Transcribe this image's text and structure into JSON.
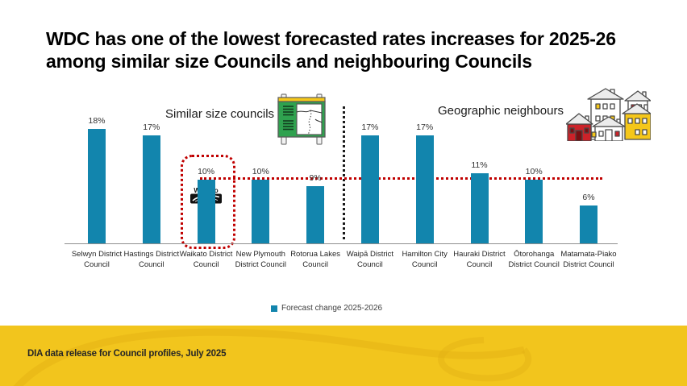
{
  "title": {
    "line1": "WDC has one of the lowest forecasted rates increases for 2025-26",
    "line2": "among similar size Councils and neighbouring Councils",
    "full": "WDC has one of the lowest forecasted rates increases for 2025-26 among similar size Councils and neighbouring Councils"
  },
  "section_labels": {
    "left": "Similar size councils",
    "right": "Geographic neighbours"
  },
  "chart_data": {
    "type": "bar",
    "categories": [
      "Selwyn District Council",
      "Hastings District Council",
      "Waikato District Council",
      "New Plymouth District Council",
      "Rotorua Lakes Council",
      "Waipā District Council",
      "Hamilton City Council",
      "Hauraki District Council",
      "Ōtorohanga District Council",
      "Matamata-Piako District Council"
    ],
    "values": [
      18,
      17,
      10,
      10,
      9,
      17,
      17,
      11,
      10,
      6
    ],
    "unit": "%",
    "series": [
      {
        "name": "Forecast change 2025-2026",
        "values": [
          18,
          17,
          10,
          10,
          9,
          17,
          17,
          11,
          10,
          6
        ]
      }
    ],
    "groups": [
      {
        "label": "Similar size councils",
        "categories": [
          "Selwyn District Council",
          "Hastings District Council",
          "Waikato District Council",
          "New Plymouth District Council",
          "Rotorua Lakes Council"
        ]
      },
      {
        "label": "Geographic neighbours",
        "categories": [
          "Waipā District Council",
          "Hamilton City Council",
          "Hauraki District Council",
          "Ōtorohanga District Council",
          "Matamata-Piako District Council"
        ]
      }
    ],
    "highlighted_category": "Waikato District Council",
    "reference_line": {
      "value": 10,
      "style": "dotted",
      "color": "#c00000"
    },
    "ylim": [
      0,
      20
    ],
    "grid": false,
    "legend_position": "bottom-center"
  },
  "legend": {
    "label": "Forecast change 2025-2026"
  },
  "waikato_logo": {
    "title": "Waikato",
    "subtitle": "District Council"
  },
  "footer": {
    "text": "DIA data release for Council profiles, July 2025"
  },
  "icons": [
    {
      "name": "map-sign-icon",
      "description": "green notice board with map"
    },
    {
      "name": "houses-icon",
      "description": "cluster of red, white and yellow houses"
    }
  ],
  "colors": {
    "bar": "#1285ad",
    "highlight_red": "#c00000",
    "divider": "#1a1a1a",
    "footer_yellow": "#f2c51d",
    "footer_swirl": "#e2b015",
    "axis": "#8f8f8f",
    "sign_green": "#2fa24f",
    "house_yellow": "#f5c71a",
    "house_red": "#cc2229"
  }
}
